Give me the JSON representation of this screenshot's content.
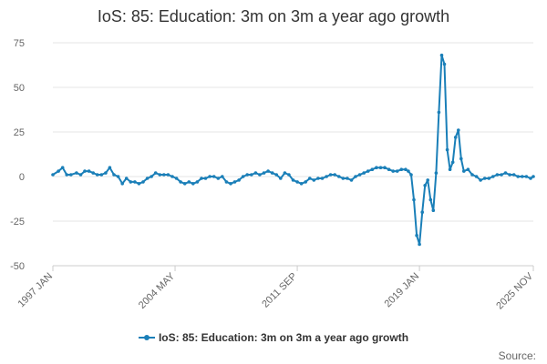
{
  "chart_data": {
    "type": "line",
    "title": "IoS: 85: Education: 3m on 3m a year ago growth",
    "ylim": [
      -50,
      75
    ],
    "y_ticks": [
      75,
      50,
      25,
      0,
      -25,
      -50
    ],
    "x_tick_labels": [
      "1997 JAN",
      "2004 MAY",
      "2011 SEP",
      "2019 JAN",
      "2025 NOV"
    ],
    "x_range": [
      "1997 JAN",
      "2025 NOV"
    ],
    "legend_position": "bottom-center",
    "grid": true,
    "series": [
      {
        "name": "IoS: 85: Education: 3m on 3m a year ago growth",
        "color": "#1a7fb8",
        "points": [
          [
            "1997-01",
            1
          ],
          [
            "1997-05",
            3
          ],
          [
            "1997-08",
            5
          ],
          [
            "1997-11",
            1
          ],
          [
            "1998-02",
            1
          ],
          [
            "1998-06",
            2
          ],
          [
            "1998-09",
            1
          ],
          [
            "1998-12",
            3
          ],
          [
            "1999-03",
            3
          ],
          [
            "1999-06",
            2
          ],
          [
            "1999-09",
            1
          ],
          [
            "1999-12",
            1
          ],
          [
            "2000-03",
            2
          ],
          [
            "2000-06",
            5
          ],
          [
            "2000-09",
            1
          ],
          [
            "2000-12",
            0
          ],
          [
            "2001-03",
            -4
          ],
          [
            "2001-06",
            -1
          ],
          [
            "2001-09",
            -3
          ],
          [
            "2001-12",
            -3
          ],
          [
            "2002-03",
            -4
          ],
          [
            "2002-06",
            -3
          ],
          [
            "2002-09",
            -1
          ],
          [
            "2002-12",
            0
          ],
          [
            "2003-03",
            2
          ],
          [
            "2003-06",
            1
          ],
          [
            "2003-09",
            1
          ],
          [
            "2003-12",
            1
          ],
          [
            "2004-03",
            0
          ],
          [
            "2004-06",
            -1
          ],
          [
            "2004-09",
            -3
          ],
          [
            "2004-12",
            -4
          ],
          [
            "2005-03",
            -3
          ],
          [
            "2005-06",
            -4
          ],
          [
            "2005-09",
            -3
          ],
          [
            "2005-12",
            -1
          ],
          [
            "2006-03",
            -1
          ],
          [
            "2006-06",
            0
          ],
          [
            "2006-09",
            0
          ],
          [
            "2006-12",
            -1
          ],
          [
            "2007-03",
            0
          ],
          [
            "2007-06",
            -3
          ],
          [
            "2007-09",
            -4
          ],
          [
            "2007-12",
            -3
          ],
          [
            "2008-03",
            -2
          ],
          [
            "2008-06",
            0
          ],
          [
            "2008-09",
            1
          ],
          [
            "2008-12",
            1
          ],
          [
            "2009-03",
            2
          ],
          [
            "2009-06",
            1
          ],
          [
            "2009-09",
            2
          ],
          [
            "2009-12",
            3
          ],
          [
            "2010-03",
            2
          ],
          [
            "2010-06",
            1
          ],
          [
            "2010-09",
            -1
          ],
          [
            "2010-12",
            2
          ],
          [
            "2011-03",
            1
          ],
          [
            "2011-06",
            -2
          ],
          [
            "2011-09",
            -3
          ],
          [
            "2011-12",
            -4
          ],
          [
            "2012-03",
            -3
          ],
          [
            "2012-06",
            -1
          ],
          [
            "2012-09",
            -2
          ],
          [
            "2012-12",
            -1
          ],
          [
            "2013-03",
            -1
          ],
          [
            "2013-06",
            0
          ],
          [
            "2013-09",
            1
          ],
          [
            "2013-12",
            1
          ],
          [
            "2014-03",
            0
          ],
          [
            "2014-06",
            -1
          ],
          [
            "2014-09",
            -1
          ],
          [
            "2014-12",
            -2
          ],
          [
            "2015-03",
            0
          ],
          [
            "2015-06",
            1
          ],
          [
            "2015-09",
            2
          ],
          [
            "2015-12",
            3
          ],
          [
            "2016-03",
            4
          ],
          [
            "2016-06",
            5
          ],
          [
            "2016-09",
            5
          ],
          [
            "2016-12",
            5
          ],
          [
            "2017-03",
            4
          ],
          [
            "2017-06",
            3
          ],
          [
            "2017-09",
            3
          ],
          [
            "2017-12",
            4
          ],
          [
            "2018-03",
            4
          ],
          [
            "2018-05",
            3
          ],
          [
            "2018-07",
            1
          ],
          [
            "2018-09",
            -13
          ],
          [
            "2018-11",
            -33
          ],
          [
            "2019-01",
            -38
          ],
          [
            "2019-03",
            -20
          ],
          [
            "2019-05",
            -5
          ],
          [
            "2019-07",
            -2
          ],
          [
            "2019-09",
            -13
          ],
          [
            "2019-11",
            -19
          ],
          [
            "2020-01",
            2
          ],
          [
            "2020-03",
            36
          ],
          [
            "2020-05",
            68
          ],
          [
            "2020-07",
            63
          ],
          [
            "2020-09",
            15
          ],
          [
            "2020-11",
            4
          ],
          [
            "2021-01",
            8
          ],
          [
            "2021-03",
            22
          ],
          [
            "2021-05",
            26
          ],
          [
            "2021-07",
            10
          ],
          [
            "2021-09",
            3
          ],
          [
            "2021-12",
            4
          ],
          [
            "2022-03",
            1
          ],
          [
            "2022-06",
            0
          ],
          [
            "2022-09",
            -2
          ],
          [
            "2022-12",
            -1
          ],
          [
            "2023-03",
            -1
          ],
          [
            "2023-06",
            0
          ],
          [
            "2023-09",
            1
          ],
          [
            "2023-12",
            1
          ],
          [
            "2024-03",
            2
          ],
          [
            "2024-06",
            1
          ],
          [
            "2024-09",
            1
          ],
          [
            "2024-12",
            0
          ],
          [
            "2025-03",
            0
          ],
          [
            "2025-06",
            0
          ],
          [
            "2025-09",
            -1
          ],
          [
            "2025-11",
            0
          ]
        ]
      }
    ]
  },
  "legend": {
    "label": "IoS: 85: Education: 3m on 3m a year ago growth"
  },
  "source": {
    "label": "Source:"
  }
}
